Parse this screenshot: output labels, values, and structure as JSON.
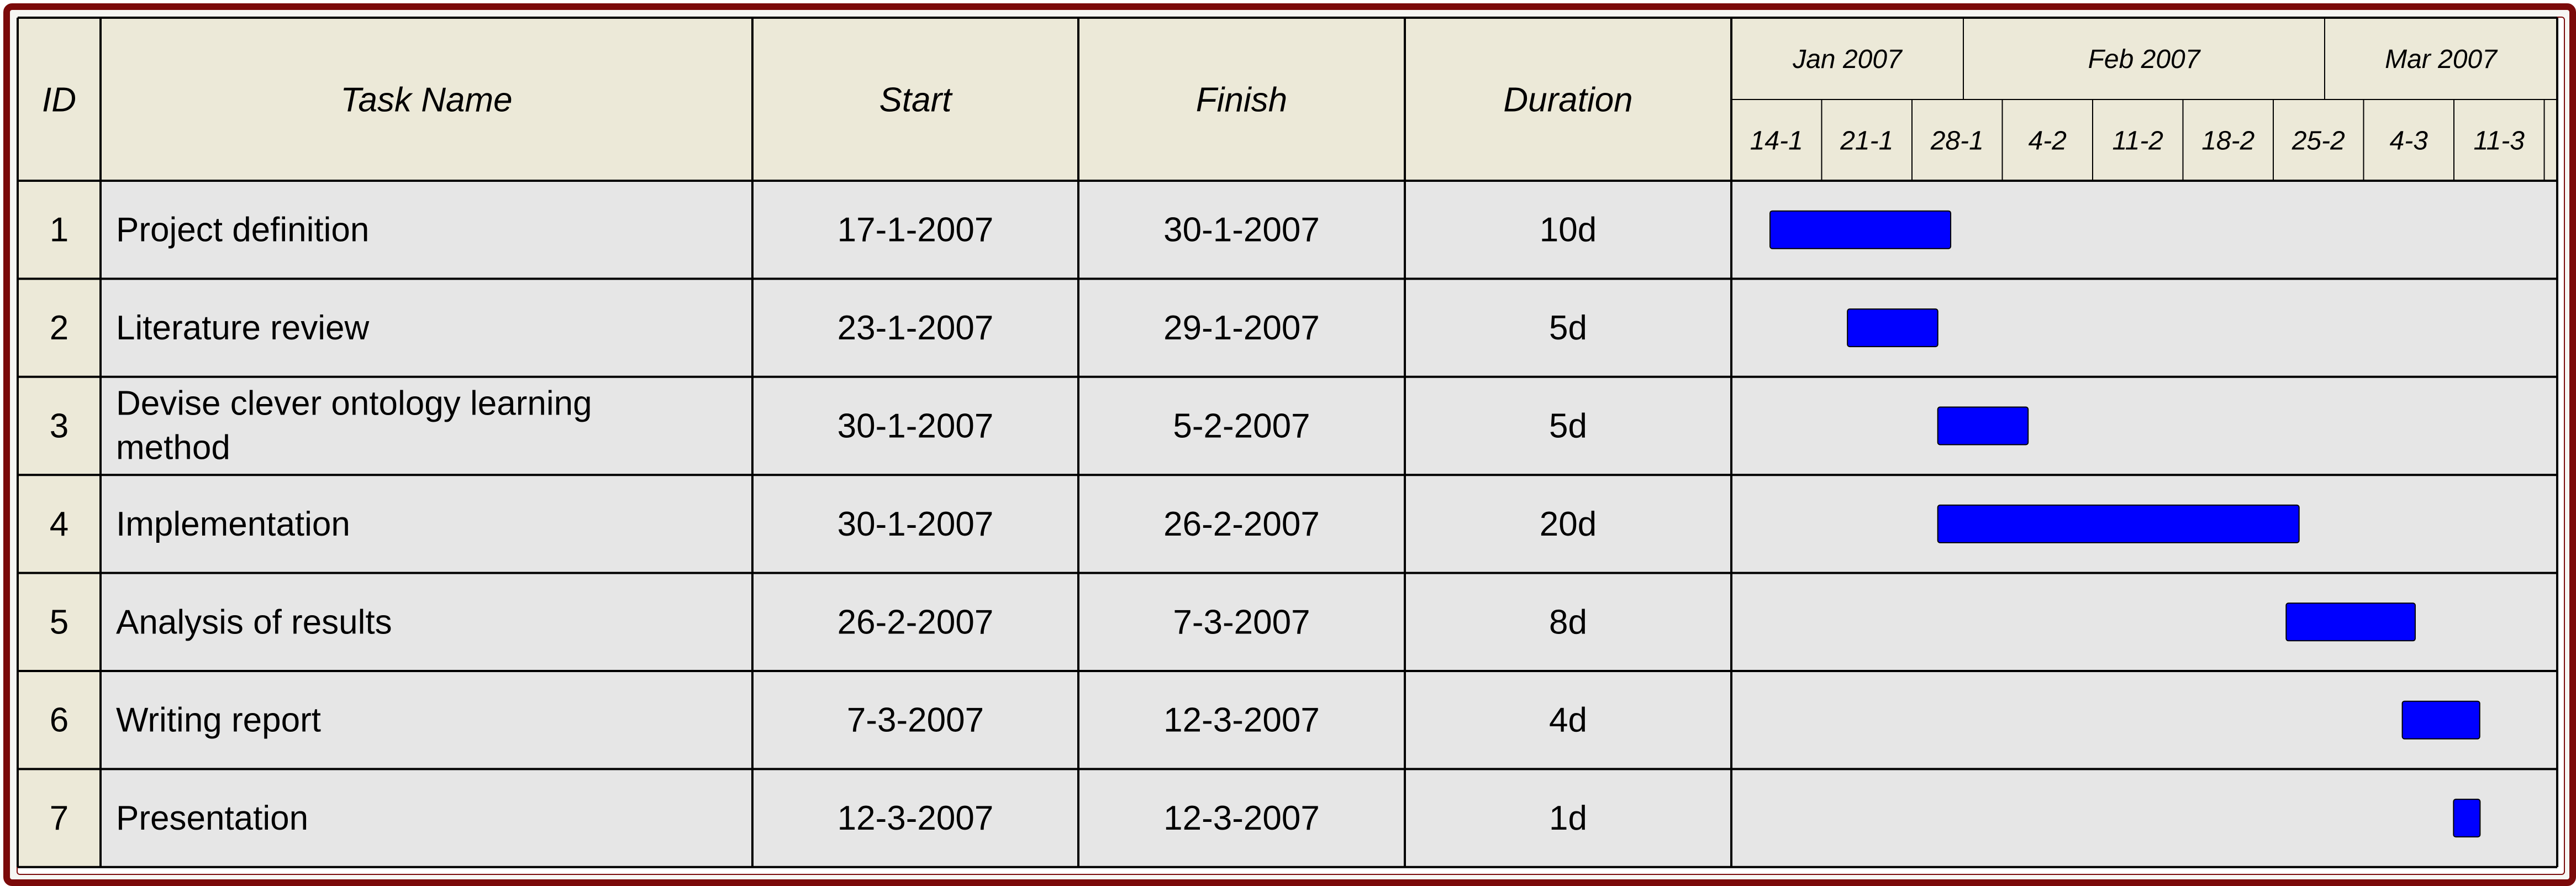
{
  "chart_data": {
    "type": "gantt",
    "columns": {
      "id": "ID",
      "task": "Task Name",
      "start": "Start",
      "finish": "Finish",
      "duration": "Duration"
    },
    "months": [
      "Jan 2007",
      "Feb 2007",
      "Mar 2007"
    ],
    "week_ticks": [
      "14-1",
      "21-1",
      "28-1",
      "4-2",
      "11-2",
      "18-2",
      "25-2",
      "4-3",
      "11-3"
    ],
    "tasks": [
      {
        "id": "1",
        "name": [
          "Project definition"
        ],
        "start": "17-1-2007",
        "finish": "30-1-2007",
        "duration": "10d"
      },
      {
        "id": "2",
        "name": [
          "Literature review"
        ],
        "start": "23-1-2007",
        "finish": "29-1-2007",
        "duration": "5d"
      },
      {
        "id": "3",
        "name": [
          "Devise clever ontology learning",
          "method"
        ],
        "start": "30-1-2007",
        "finish": "5-2-2007",
        "duration": "5d"
      },
      {
        "id": "4",
        "name": [
          "Implementation"
        ],
        "start": "30-1-2007",
        "finish": "26-2-2007",
        "duration": "20d"
      },
      {
        "id": "5",
        "name": [
          "Analysis of results"
        ],
        "start": "26-2-2007",
        "finish": "7-3-2007",
        "duration": "8d"
      },
      {
        "id": "6",
        "name": [
          "Writing report"
        ],
        "start": "7-3-2007",
        "finish": "12-3-2007",
        "duration": "4d"
      },
      {
        "id": "7",
        "name": [
          "Presentation"
        ],
        "start": "12-3-2007",
        "finish": "12-3-2007",
        "duration": "1d"
      }
    ],
    "colors": {
      "bar": "#0000ff",
      "header_bg": "#ece9d8",
      "id_bg": "#ece9d8",
      "row_bg": "#e6e6e6",
      "border": "#7b0a0a"
    }
  }
}
